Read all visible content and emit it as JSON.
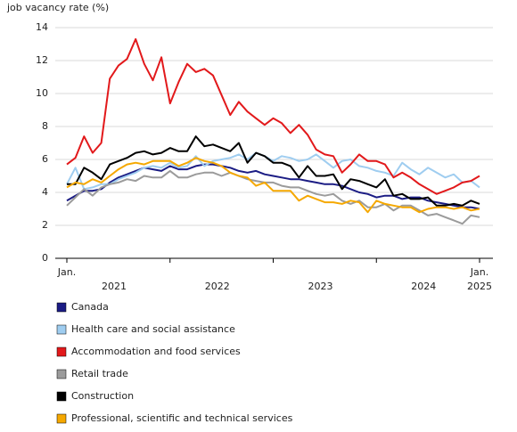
{
  "chart_data": {
    "type": "line",
    "y_label": "job vacancy rate (%)",
    "categories": [
      "Jan.",
      null,
      null,
      null,
      null,
      null,
      null,
      null,
      null,
      null,
      null,
      null,
      null,
      null,
      null,
      null,
      null,
      null,
      null,
      null,
      null,
      null,
      null,
      null,
      null,
      null,
      null,
      null,
      null,
      null,
      null,
      null,
      null,
      null,
      null,
      null,
      null,
      null,
      null,
      null,
      null,
      null,
      null,
      null,
      null,
      null,
      null,
      null,
      "Jan."
    ],
    "years": [
      "2021",
      "2022",
      "2023",
      "2024",
      "2025"
    ],
    "ylim": [
      0,
      14
    ],
    "yticks": [
      0,
      2,
      4,
      6,
      8,
      10,
      12,
      14
    ],
    "grid": true,
    "series": [
      {
        "name": "Canada",
        "color": "#1b1c84",
        "values": [
          3.5,
          3.8,
          4.1,
          4.1,
          4.2,
          4.6,
          4.9,
          5.1,
          5.3,
          5.5,
          5.4,
          5.3,
          5.6,
          5.4,
          5.4,
          5.6,
          5.7,
          5.7,
          5.6,
          5.5,
          5.3,
          5.2,
          5.3,
          5.1,
          5.0,
          4.9,
          4.8,
          4.8,
          4.7,
          4.6,
          4.5,
          4.5,
          4.4,
          4.2,
          4.0,
          3.9,
          3.7,
          3.8,
          3.8,
          3.6,
          3.7,
          3.7,
          3.5,
          3.4,
          3.3,
          3.2,
          3.1,
          3.1,
          3.0
        ]
      },
      {
        "name": "Health care and social assistance",
        "color": "#9fcdf0",
        "values": [
          4.5,
          5.5,
          4.2,
          4.3,
          4.5,
          4.5,
          4.8,
          5.0,
          5.2,
          5.5,
          5.6,
          5.5,
          5.8,
          5.5,
          5.6,
          6.2,
          5.6,
          5.9,
          6.0,
          6.1,
          6.3,
          6.0,
          6.4,
          6.2,
          5.9,
          6.2,
          6.1,
          5.9,
          6.0,
          6.3,
          5.9,
          5.5,
          5.9,
          6.0,
          5.6,
          5.5,
          5.3,
          5.2,
          5.0,
          5.8,
          5.4,
          5.1,
          5.5,
          5.2,
          4.9,
          5.1,
          4.6,
          4.7,
          4.3
        ]
      },
      {
        "name": "Accommodation and food services",
        "color": "#e2191b",
        "values": [
          5.7,
          6.1,
          7.4,
          6.4,
          7.0,
          10.9,
          11.7,
          12.1,
          13.3,
          11.8,
          10.8,
          12.2,
          9.4,
          10.7,
          11.8,
          11.3,
          11.5,
          11.1,
          9.9,
          8.7,
          9.5,
          8.9,
          8.5,
          8.1,
          8.5,
          8.2,
          7.6,
          8.1,
          7.5,
          6.6,
          6.3,
          6.2,
          5.2,
          5.7,
          6.3,
          5.9,
          5.9,
          5.7,
          4.9,
          5.2,
          4.9,
          4.5,
          4.2,
          3.9,
          4.1,
          4.3,
          4.6,
          4.7,
          5.0
        ]
      },
      {
        "name": "Retail trade",
        "color": "#9b9b9b",
        "values": [
          3.2,
          3.7,
          4.2,
          3.8,
          4.3,
          4.5,
          4.6,
          4.8,
          4.7,
          5.0,
          4.9,
          4.9,
          5.3,
          4.9,
          4.9,
          5.1,
          5.2,
          5.2,
          5.0,
          5.2,
          5.0,
          4.8,
          4.7,
          4.6,
          4.6,
          4.4,
          4.3,
          4.3,
          4.1,
          3.9,
          3.8,
          3.9,
          3.5,
          3.3,
          3.5,
          3.1,
          3.1,
          3.3,
          2.9,
          3.2,
          3.2,
          2.9,
          2.6,
          2.7,
          2.5,
          2.3,
          2.1,
          2.6,
          2.5
        ]
      },
      {
        "name": "Construction",
        "color": "#000000",
        "values": [
          4.5,
          4.5,
          5.5,
          5.2,
          4.8,
          5.7,
          5.9,
          6.1,
          6.4,
          6.5,
          6.3,
          6.4,
          6.7,
          6.5,
          6.5,
          7.4,
          6.8,
          6.9,
          6.7,
          6.5,
          7.0,
          5.8,
          6.4,
          6.2,
          5.8,
          5.8,
          5.6,
          4.9,
          5.6,
          5.0,
          5.0,
          5.1,
          4.2,
          4.8,
          4.7,
          4.5,
          4.3,
          4.8,
          3.8,
          3.9,
          3.6,
          3.6,
          3.7,
          3.2,
          3.2,
          3.3,
          3.2,
          3.5,
          3.3
        ]
      },
      {
        "name": "Professional, scientific and technical services",
        "color": "#f5a800",
        "values": [
          4.3,
          4.6,
          4.5,
          4.8,
          4.6,
          5.0,
          5.4,
          5.7,
          5.8,
          5.7,
          5.9,
          5.9,
          5.9,
          5.6,
          5.8,
          6.1,
          5.9,
          5.8,
          5.6,
          5.2,
          5.0,
          4.9,
          4.4,
          4.6,
          4.1,
          4.1,
          4.1,
          3.5,
          3.8,
          3.6,
          3.4,
          3.4,
          3.3,
          3.5,
          3.4,
          2.8,
          3.5,
          3.3,
          3.2,
          3.1,
          3.1,
          2.8,
          3.0,
          3.1,
          3.1,
          3.0,
          3.1,
          2.9,
          3.0
        ]
      }
    ]
  }
}
